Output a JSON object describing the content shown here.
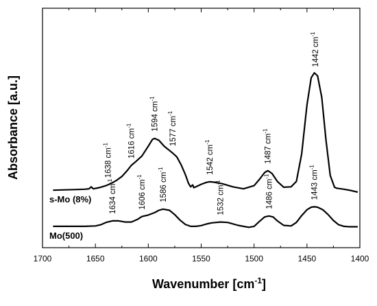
{
  "chart_data": {
    "type": "line",
    "xlabel": "Wavenumber [cm",
    "xlabel_sup": "-1",
    "xlabel_end": "]",
    "ylabel": "Absorbance [a.u.]",
    "xlim": [
      1700,
      1400
    ],
    "x_reversed": true,
    "ylim": [
      0,
      1
    ],
    "grid": false,
    "x_ticks": [
      1700,
      1650,
      1600,
      1550,
      1500,
      1450,
      1400
    ],
    "peak_unit": "cm",
    "peak_unit_sup": "-1",
    "series": [
      {
        "name": "s-Mo (8%)",
        "points": [
          [
            1690,
            0.245
          ],
          [
            1670,
            0.248
          ],
          [
            1660,
            0.25
          ],
          [
            1656,
            0.252
          ],
          [
            1654,
            0.262
          ],
          [
            1652,
            0.252
          ],
          [
            1648,
            0.256
          ],
          [
            1645,
            0.26
          ],
          [
            1640,
            0.268
          ],
          [
            1635,
            0.28
          ],
          [
            1630,
            0.295
          ],
          [
            1625,
            0.315
          ],
          [
            1620,
            0.345
          ],
          [
            1616,
            0.372
          ],
          [
            1612,
            0.39
          ],
          [
            1606,
            0.42
          ],
          [
            1600,
            0.47
          ],
          [
            1596,
            0.505
          ],
          [
            1594,
            0.51
          ],
          [
            1590,
            0.5
          ],
          [
            1585,
            0.47
          ],
          [
            1580,
            0.448
          ],
          [
            1577,
            0.435
          ],
          [
            1573,
            0.415
          ],
          [
            1569,
            0.375
          ],
          [
            1565,
            0.325
          ],
          [
            1562,
            0.28
          ],
          [
            1560,
            0.262
          ],
          [
            1558,
            0.272
          ],
          [
            1557,
            0.258
          ],
          [
            1555,
            0.262
          ],
          [
            1550,
            0.275
          ],
          [
            1545,
            0.285
          ],
          [
            1542,
            0.288
          ],
          [
            1538,
            0.286
          ],
          [
            1530,
            0.278
          ],
          [
            1520,
            0.262
          ],
          [
            1510,
            0.252
          ],
          [
            1500,
            0.268
          ],
          [
            1495,
            0.3
          ],
          [
            1490,
            0.335
          ],
          [
            1487,
            0.345
          ],
          [
            1483,
            0.33
          ],
          [
            1478,
            0.29
          ],
          [
            1472,
            0.26
          ],
          [
            1465,
            0.262
          ],
          [
            1460,
            0.29
          ],
          [
            1455,
            0.43
          ],
          [
            1450,
            0.68
          ],
          [
            1446,
            0.82
          ],
          [
            1443,
            0.845
          ],
          [
            1440,
            0.83
          ],
          [
            1436,
            0.72
          ],
          [
            1432,
            0.5
          ],
          [
            1428,
            0.32
          ],
          [
            1424,
            0.26
          ],
          [
            1422,
            0.255
          ],
          [
            1415,
            0.25
          ],
          [
            1410,
            0.245
          ],
          [
            1402,
            0.235
          ]
        ],
        "peaks": [
          {
            "label": "1638",
            "x": 1638
          },
          {
            "label": "1616",
            "x": 1616
          },
          {
            "label": "1594",
            "x": 1594
          },
          {
            "label": "1577",
            "x": 1577
          },
          {
            "label": "1542",
            "x": 1542
          },
          {
            "label": "1487",
            "x": 1487
          },
          {
            "label": "1442",
            "x": 1442
          }
        ]
      },
      {
        "name": "Mo(500)",
        "points": [
          [
            1690,
            0.06
          ],
          [
            1670,
            0.06
          ],
          [
            1660,
            0.06
          ],
          [
            1650,
            0.062
          ],
          [
            1645,
            0.068
          ],
          [
            1640,
            0.08
          ],
          [
            1634,
            0.088
          ],
          [
            1628,
            0.088
          ],
          [
            1622,
            0.082
          ],
          [
            1616,
            0.082
          ],
          [
            1610,
            0.096
          ],
          [
            1606,
            0.11
          ],
          [
            1600,
            0.118
          ],
          [
            1594,
            0.13
          ],
          [
            1590,
            0.142
          ],
          [
            1586,
            0.148
          ],
          [
            1580,
            0.142
          ],
          [
            1575,
            0.12
          ],
          [
            1570,
            0.092
          ],
          [
            1565,
            0.07
          ],
          [
            1560,
            0.06
          ],
          [
            1555,
            0.06
          ],
          [
            1550,
            0.064
          ],
          [
            1545,
            0.072
          ],
          [
            1540,
            0.078
          ],
          [
            1532,
            0.082
          ],
          [
            1525,
            0.08
          ],
          [
            1515,
            0.065
          ],
          [
            1505,
            0.055
          ],
          [
            1500,
            0.06
          ],
          [
            1495,
            0.085
          ],
          [
            1490,
            0.108
          ],
          [
            1486,
            0.113
          ],
          [
            1482,
            0.108
          ],
          [
            1478,
            0.088
          ],
          [
            1472,
            0.065
          ],
          [
            1465,
            0.062
          ],
          [
            1460,
            0.08
          ],
          [
            1455,
            0.115
          ],
          [
            1450,
            0.145
          ],
          [
            1446,
            0.158
          ],
          [
            1443,
            0.16
          ],
          [
            1440,
            0.158
          ],
          [
            1435,
            0.145
          ],
          [
            1430,
            0.12
          ],
          [
            1425,
            0.09
          ],
          [
            1420,
            0.068
          ],
          [
            1415,
            0.06
          ],
          [
            1410,
            0.058
          ],
          [
            1402,
            0.058
          ]
        ],
        "peaks": [
          {
            "label": "1634",
            "x": 1634
          },
          {
            "label": "1606",
            "x": 1606
          },
          {
            "label": "1586",
            "x": 1586
          },
          {
            "label": "1532",
            "x": 1532
          },
          {
            "label": "1486",
            "x": 1486
          },
          {
            "label": "1443",
            "x": 1443
          }
        ]
      }
    ]
  }
}
